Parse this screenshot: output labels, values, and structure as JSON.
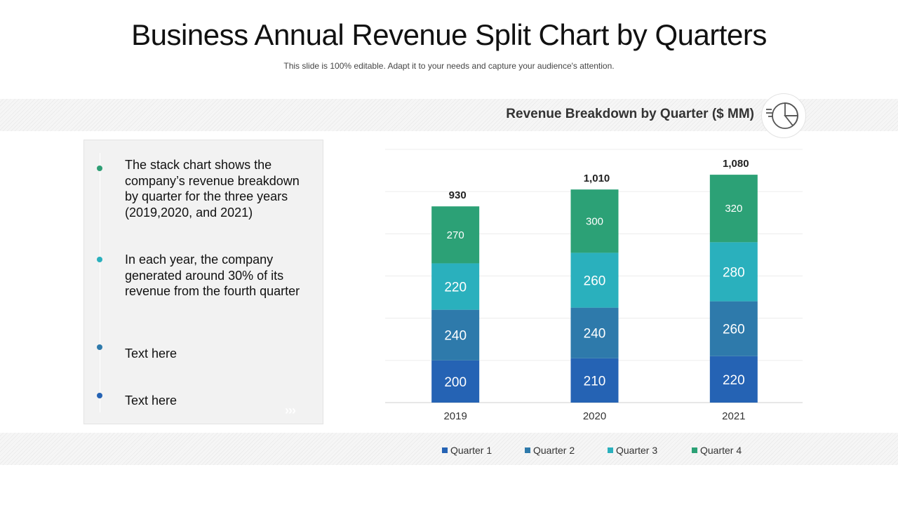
{
  "title": "Business Annual Revenue Split Chart by Quarters",
  "subtitle": "This slide is 100% editable. Adapt it to your needs and capture your audience's attention.",
  "bullets": [
    {
      "text": "The stack chart shows the company’s revenue breakdown by quarter for the three years (2019,2020, and 2021)",
      "color": "#2e9e74"
    },
    {
      "text": "In each year, the company generated around 30% of its revenue from the fourth quarter",
      "color": "#2ab0bd"
    },
    {
      "text": "Text here",
      "color": "#2e7aab"
    },
    {
      "text": "Text here",
      "color": "#2563b4"
    }
  ],
  "chevrons": "›››",
  "chart_data": {
    "type": "bar",
    "stacked": true,
    "title": "Revenue Breakdown by Quarter ($ MM)",
    "categories": [
      "2019",
      "2020",
      "2021"
    ],
    "series": [
      {
        "name": "Quarter 1",
        "values": [
          200,
          210,
          220
        ],
        "color": "#2563b4"
      },
      {
        "name": "Quarter 2",
        "values": [
          240,
          240,
          260
        ],
        "color": "#2e7aab"
      },
      {
        "name": "Quarter 3",
        "values": [
          220,
          260,
          280
        ],
        "color": "#2ab0bd"
      },
      {
        "name": "Quarter 4",
        "values": [
          270,
          300,
          320
        ],
        "color": "#2ca176"
      }
    ],
    "totals": [
      "930",
      "1,010",
      "1,080"
    ],
    "ylim": [
      0,
      1200
    ],
    "grid": true,
    "legend": "bottom"
  }
}
